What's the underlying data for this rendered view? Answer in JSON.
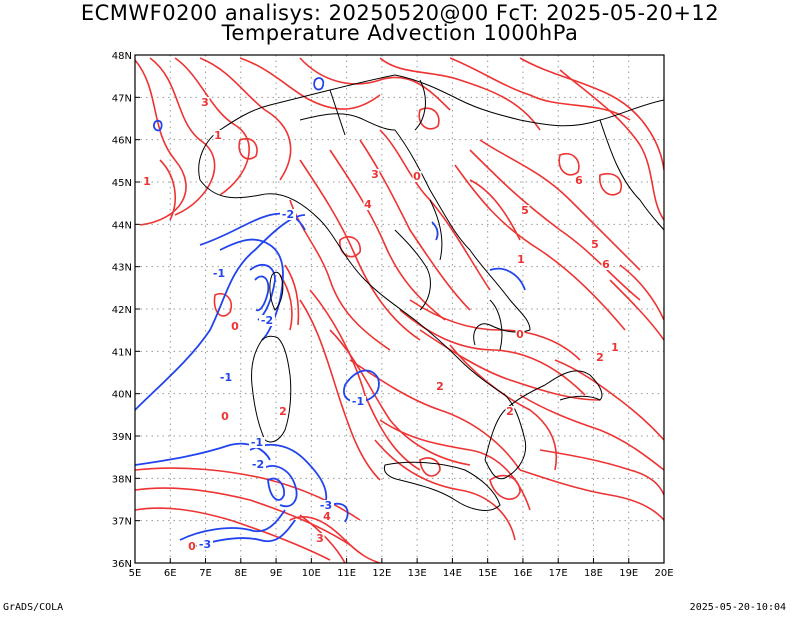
{
  "header": {
    "line1": "ECMWF0200 analisys: 20250520@00 FcT: 2025-05-20+12",
    "line2": "Temperature Advection 1000hPa"
  },
  "footer": {
    "left": "GrADS/COLA",
    "right": "2025-05-20-10:04"
  },
  "map": {
    "lon_range": [
      5,
      20
    ],
    "lat_range": [
      36,
      48
    ],
    "lon_labels": [
      "5E",
      "6E",
      "7E",
      "8E",
      "9E",
      "10E",
      "11E",
      "12E",
      "13E",
      "14E",
      "15E",
      "16E",
      "17E",
      "18E",
      "19E",
      "20E"
    ],
    "lat_labels": [
      "36N",
      "37N",
      "38N",
      "39N",
      "40N",
      "41N",
      "42N",
      "43N",
      "44N",
      "45N",
      "46N",
      "47N",
      "48N"
    ],
    "positive_color": "#ee3333",
    "negative_color": "#2244ee",
    "coast_color": "#000000",
    "grid_color": "#999999",
    "contour_labels": [
      {
        "text": "0",
        "color": "positive"
      },
      {
        "text": "1",
        "color": "positive"
      },
      {
        "text": "2",
        "color": "positive"
      },
      {
        "text": "3",
        "color": "positive"
      },
      {
        "text": "4",
        "color": "positive"
      },
      {
        "text": "5",
        "color": "positive"
      },
      {
        "text": "6",
        "color": "positive"
      },
      {
        "text": "-1",
        "color": "negative"
      },
      {
        "text": "-2",
        "color": "negative"
      },
      {
        "text": "-3",
        "color": "negative"
      }
    ]
  }
}
